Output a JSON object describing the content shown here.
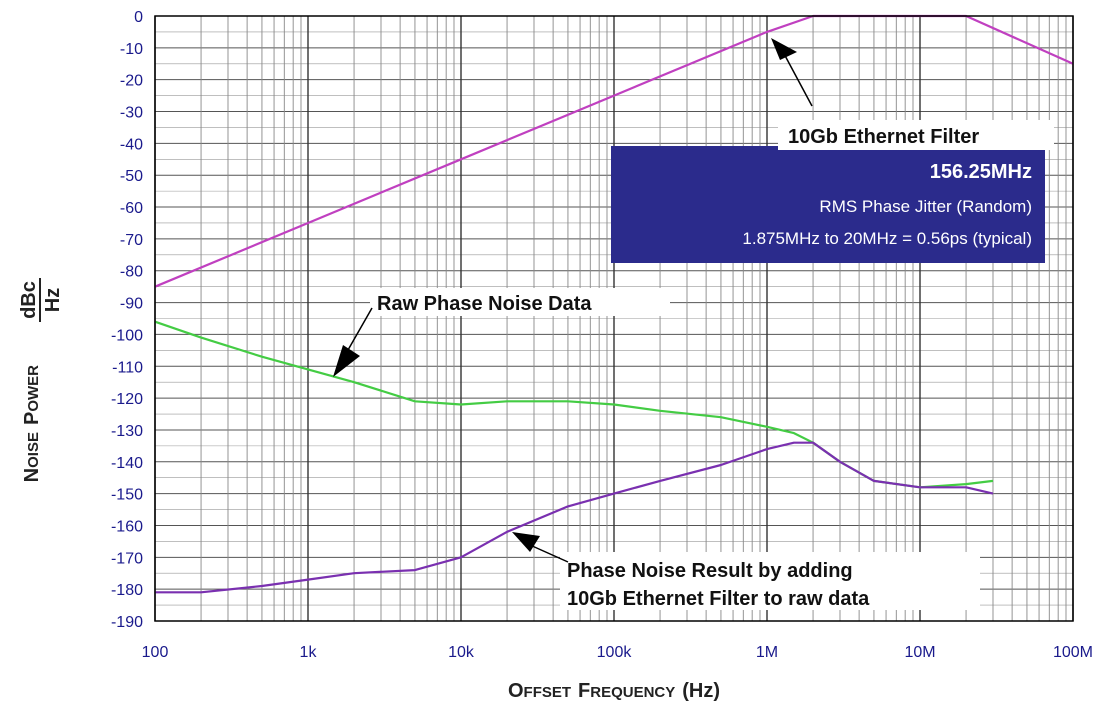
{
  "chart_data": {
    "type": "line",
    "x_scale": "log",
    "xlim": [
      100,
      100000000
    ],
    "ylim": [
      -190,
      0
    ],
    "grid": true,
    "y_ticks": [
      "0",
      "-10",
      "-20",
      "-30",
      "-40",
      "-50",
      "-60",
      "-70",
      "-80",
      "-90",
      "-100",
      "-110",
      "-120",
      "-130",
      "-140",
      "-150",
      "-160",
      "-170",
      "-180",
      "-190"
    ],
    "x_ticks": [
      {
        "value": 100,
        "label": "100"
      },
      {
        "value": 1000,
        "label": "1k"
      },
      {
        "value": 10000,
        "label": "10k"
      },
      {
        "value": 100000,
        "label": "100k"
      },
      {
        "value": 1000000,
        "label": "1M"
      },
      {
        "value": 10000000,
        "label": "10M"
      },
      {
        "value": 100000000,
        "label": "100M"
      }
    ],
    "xlabel": {
      "first_cap": "O",
      "first_rest": "FFSET",
      "second_cap": "F",
      "second_rest": "REQUENCY",
      "unit": "(Hz)"
    },
    "ylabel": {
      "first_cap": "N",
      "first_rest": "OISE",
      "second_cap": "P",
      "second_rest": "OWER",
      "frac_num": "dBc",
      "frac_den": "Hz"
    },
    "series": [
      {
        "color": "#c040c0",
        "x": [
          100,
          1000,
          10000,
          100000,
          1000000,
          2000000,
          20000000,
          100000000
        ],
        "y": [
          -85,
          -65,
          -45,
          -25,
          -5,
          0,
          0,
          -15
        ]
      },
      {
        "color": "#44cc44",
        "x": [
          100,
          200,
          500,
          1000,
          2000,
          5000,
          10000,
          20000,
          50000,
          100000,
          200000,
          500000,
          1000000,
          1500000,
          2000000,
          3000000,
          5000000,
          10000000,
          20000000,
          30000000
        ],
        "y": [
          -96,
          -101,
          -107,
          -111,
          -115,
          -121,
          -122,
          -121,
          -121,
          -122,
          -124,
          -126,
          -129,
          -131,
          -134,
          -140,
          -146,
          -148,
          -147,
          -146
        ]
      },
      {
        "color": "#7a30b0",
        "x": [
          100,
          200,
          500,
          1000,
          2000,
          5000,
          10000,
          20000,
          50000,
          100000,
          200000,
          500000,
          1000000,
          1500000,
          2000000,
          3000000,
          5000000,
          10000000,
          20000000,
          30000000
        ],
        "y": [
          -181,
          -181,
          -179,
          -177,
          -175,
          -174,
          -170,
          -162,
          -154,
          -150,
          -146,
          -141,
          -136,
          -134,
          -134,
          -140,
          -146,
          -148,
          -148,
          -150
        ]
      }
    ],
    "annotations": [
      {
        "text": "10Gb Ethernet Filter",
        "x": 1500000,
        "y": -5
      },
      {
        "text": "Raw Phase Noise Data",
        "x": 1500,
        "y": -114
      },
      {
        "text": "Phase Noise Result by adding",
        "text2": "10Gb Ethernet Filter to raw data",
        "x": 20000,
        "y": -160
      }
    ],
    "info_box": {
      "title": "156.25MHz",
      "line1": "RMS Phase Jitter  (Random)",
      "line2": "1.875MHz to 20MHz = 0.56ps (typical)",
      "bg": "#2b2b8c"
    }
  }
}
